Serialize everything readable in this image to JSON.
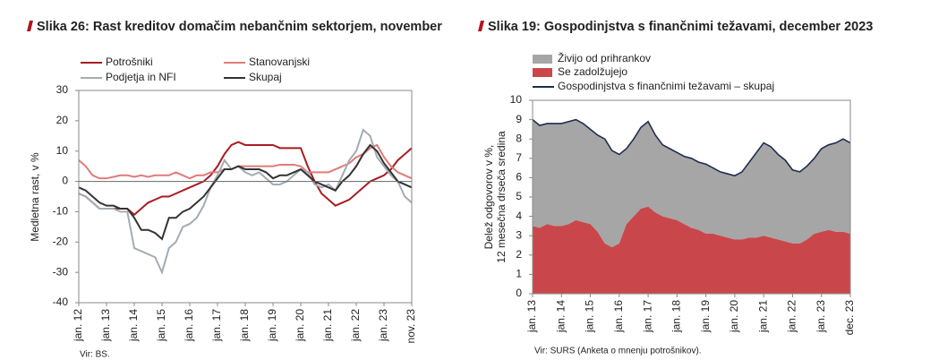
{
  "chart_data": [
    {
      "type": "line",
      "title": "Slika 26: Rast kreditov domačim nebančnim sektorjem, november",
      "ylabel": "Medletna rast, v %",
      "source": "Vir: BS.",
      "categories": [
        "jan. 12",
        null,
        null,
        null,
        "jan. 13",
        null,
        null,
        null,
        "jan. 14",
        null,
        null,
        null,
        "jan. 15",
        null,
        null,
        null,
        "jan. 16",
        null,
        null,
        null,
        "jan. 17",
        null,
        null,
        null,
        "jan. 18",
        null,
        null,
        null,
        "jan. 19",
        null,
        null,
        null,
        "jan. 20",
        null,
        null,
        null,
        "jan. 21",
        null,
        null,
        null,
        "jan. 22",
        null,
        null,
        null,
        "jan. 23",
        null,
        null,
        null,
        "nov. 23"
      ],
      "series": [
        {
          "name": "Potrošniki",
          "color": "#a81c22",
          "values": [
            -4,
            -5,
            -7,
            -9,
            -9,
            -9,
            -9,
            -9,
            -11,
            -9,
            -7,
            -6,
            -5,
            -5,
            -4,
            -3,
            -2,
            -1,
            0,
            2,
            5,
            9,
            12,
            13,
            12,
            12,
            12,
            12,
            12,
            11,
            11,
            11,
            11,
            5,
            0,
            -4,
            -6,
            -8,
            -7,
            -6,
            -4,
            -2,
            0,
            1,
            2,
            4,
            7,
            9,
            11
          ]
        },
        {
          "name": "Stanovanjski",
          "color": "#e07b78",
          "values": [
            7,
            5,
            2,
            1,
            1,
            1.5,
            2,
            2,
            1.5,
            2,
            1.5,
            2,
            2,
            2,
            3,
            2,
            1,
            2,
            2,
            3,
            3,
            4,
            4,
            5,
            5,
            5,
            5,
            5,
            5,
            5.5,
            5.5,
            5.5,
            5,
            3,
            3,
            3,
            3,
            4,
            5,
            6,
            8,
            9,
            11,
            12,
            8,
            5,
            3,
            2,
            1
          ]
        },
        {
          "name": "Podjetja in NFI",
          "color": "#a3acb5",
          "values": [
            -4,
            -5,
            -7,
            -9,
            -9,
            -9,
            -10,
            -10,
            -22,
            -23,
            -24,
            -25,
            -30,
            -22,
            -20,
            -15,
            -14,
            -12,
            -8,
            -2,
            2,
            7,
            4,
            5,
            3,
            2,
            3,
            1,
            -1,
            -1,
            0,
            2,
            4,
            3,
            -1,
            -2,
            -1,
            -3,
            2,
            7,
            10,
            17,
            15,
            8,
            5,
            2,
            0,
            -5,
            -7
          ]
        },
        {
          "name": "Skupaj",
          "color": "#333333",
          "values": [
            -2,
            -3,
            -5,
            -7,
            -8,
            -8,
            -9,
            -9,
            -12,
            -16,
            -16,
            -17,
            -19,
            -12,
            -12,
            -10,
            -9,
            -7,
            -5,
            -2,
            1,
            4,
            4,
            5,
            4,
            4,
            4,
            3,
            1,
            2,
            2,
            3,
            4,
            2,
            0,
            -1,
            -2,
            -3,
            0,
            2,
            5,
            9,
            12,
            10,
            6,
            3,
            0,
            -1,
            -2
          ]
        }
      ],
      "ylim": [
        -40,
        30
      ],
      "yticks": [
        -40,
        -30,
        -20,
        -10,
        0,
        10,
        20,
        30
      ],
      "zero_line": true
    },
    {
      "type": "area",
      "title": "Slika 19: Gospodinjstva s finančnimi težavami, december 2023",
      "ylabel": [
        "Delež odgovorov v %,",
        "12 mesečna  drseča sredina"
      ],
      "source": "Vir: SURS (Anketa o mnenju potrošnikov).",
      "categories": [
        "jan. 13",
        null,
        null,
        null,
        "jan. 14",
        null,
        null,
        null,
        "jan. 15",
        null,
        null,
        null,
        "jan. 16",
        null,
        null,
        null,
        "jan. 17",
        null,
        null,
        null,
        "jan. 18",
        null,
        null,
        null,
        "jan. 19",
        null,
        null,
        null,
        "jan. 20",
        null,
        null,
        null,
        "jan. 21",
        null,
        null,
        null,
        "jan. 22",
        null,
        null,
        null,
        "jan. 23",
        null,
        null,
        null,
        "dec. 23"
      ],
      "series": [
        {
          "name": "Živijo od prihrankov",
          "color": "#a6a6a6",
          "kind": "stacked",
          "values": [
            5.5,
            5.3,
            5.2,
            5.3,
            5.3,
            5.3,
            5.2,
            5.1,
            4.9,
            5.0,
            5.4,
            5.0,
            4.6,
            3.9,
            4.0,
            4.2,
            4.4,
            4.0,
            3.7,
            3.6,
            3.5,
            3.5,
            3.6,
            3.5,
            3.6,
            3.4,
            3.3,
            3.3,
            3.3,
            3.5,
            3.9,
            4.4,
            4.8,
            4.7,
            4.4,
            4.2,
            3.8,
            3.7,
            3.8,
            3.9,
            4.3,
            4.4,
            4.6,
            4.8,
            4.7
          ]
        },
        {
          "name": "Se zadolžujejo",
          "color": "#c9474b",
          "kind": "stacked",
          "values": [
            3.5,
            3.4,
            3.6,
            3.5,
            3.5,
            3.6,
            3.8,
            3.7,
            3.6,
            3.2,
            2.6,
            2.4,
            2.6,
            3.6,
            4.0,
            4.4,
            4.5,
            4.2,
            4.0,
            3.9,
            3.8,
            3.6,
            3.4,
            3.3,
            3.1,
            3.1,
            3.0,
            2.9,
            2.8,
            2.8,
            2.9,
            2.9,
            3.0,
            2.9,
            2.8,
            2.7,
            2.6,
            2.6,
            2.8,
            3.1,
            3.2,
            3.3,
            3.2,
            3.2,
            3.1
          ]
        },
        {
          "name": "Gospodinjstva s finančnimi težavami – skupaj",
          "color": "#1f2d4e",
          "kind": "line",
          "values": [
            9,
            8.7,
            8.8,
            8.8,
            8.8,
            8.9,
            9,
            8.8,
            8.5,
            8.2,
            8,
            7.4,
            7.2,
            7.5,
            8,
            8.6,
            8.9,
            8.2,
            7.7,
            7.5,
            7.3,
            7.1,
            7,
            6.8,
            6.7,
            6.5,
            6.3,
            6.2,
            6.1,
            6.3,
            6.8,
            7.3,
            7.8,
            7.6,
            7.2,
            6.9,
            6.4,
            6.3,
            6.6,
            7,
            7.5,
            7.7,
            7.8,
            8,
            7.8
          ]
        }
      ],
      "ylim": [
        0,
        10
      ],
      "yticks": [
        0,
        1,
        2,
        3,
        4,
        5,
        6,
        7,
        8,
        9,
        10
      ]
    }
  ]
}
